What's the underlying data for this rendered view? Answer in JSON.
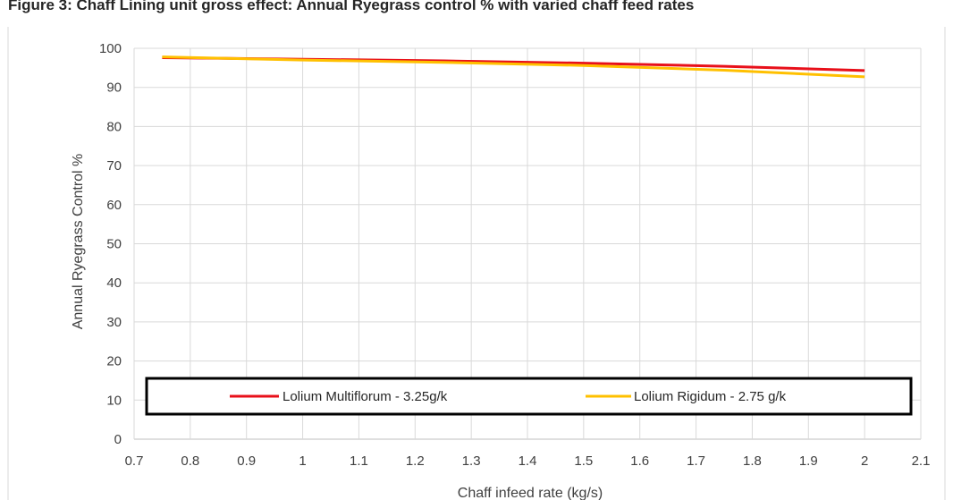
{
  "title_fragment": "Figure 3: Chaff Lining unit gross effect: Annual Ryegrass control % with varied chaff feed rates",
  "chart_data": {
    "type": "line",
    "xlabel": "Chaff infeed rate (kg/s)",
    "ylabel": "Annual Ryegrass Control %",
    "xlim": [
      0.7,
      2.1
    ],
    "ylim": [
      0,
      100
    ],
    "x_ticks": [
      "0.7",
      "0.8",
      "0.9",
      "1",
      "1.1",
      "1.2",
      "1.3",
      "1.4",
      "1.5",
      "1.6",
      "1.7",
      "1.8",
      "1.9",
      "2",
      "2.1"
    ],
    "y_ticks": [
      "0",
      "10",
      "20",
      "30",
      "40",
      "50",
      "60",
      "70",
      "80",
      "90",
      "100"
    ],
    "grid": true,
    "legend_position": "bottom-inside",
    "series": [
      {
        "name": "Lolium Multiflorum - 3.25g/k",
        "color": "#e8101a",
        "x": [
          0.75,
          1.0,
          1.25,
          1.5,
          1.75,
          2.0
        ],
        "y": [
          97.6,
          97.2,
          96.8,
          96.2,
          95.4,
          94.3
        ]
      },
      {
        "name": "Lolium Rigidum - 2.75 g/k",
        "color": "#ffc000",
        "x": [
          0.75,
          1.0,
          1.25,
          1.5,
          1.75,
          2.0
        ],
        "y": [
          97.8,
          97.0,
          96.4,
          95.6,
          94.4,
          92.7
        ]
      }
    ]
  }
}
